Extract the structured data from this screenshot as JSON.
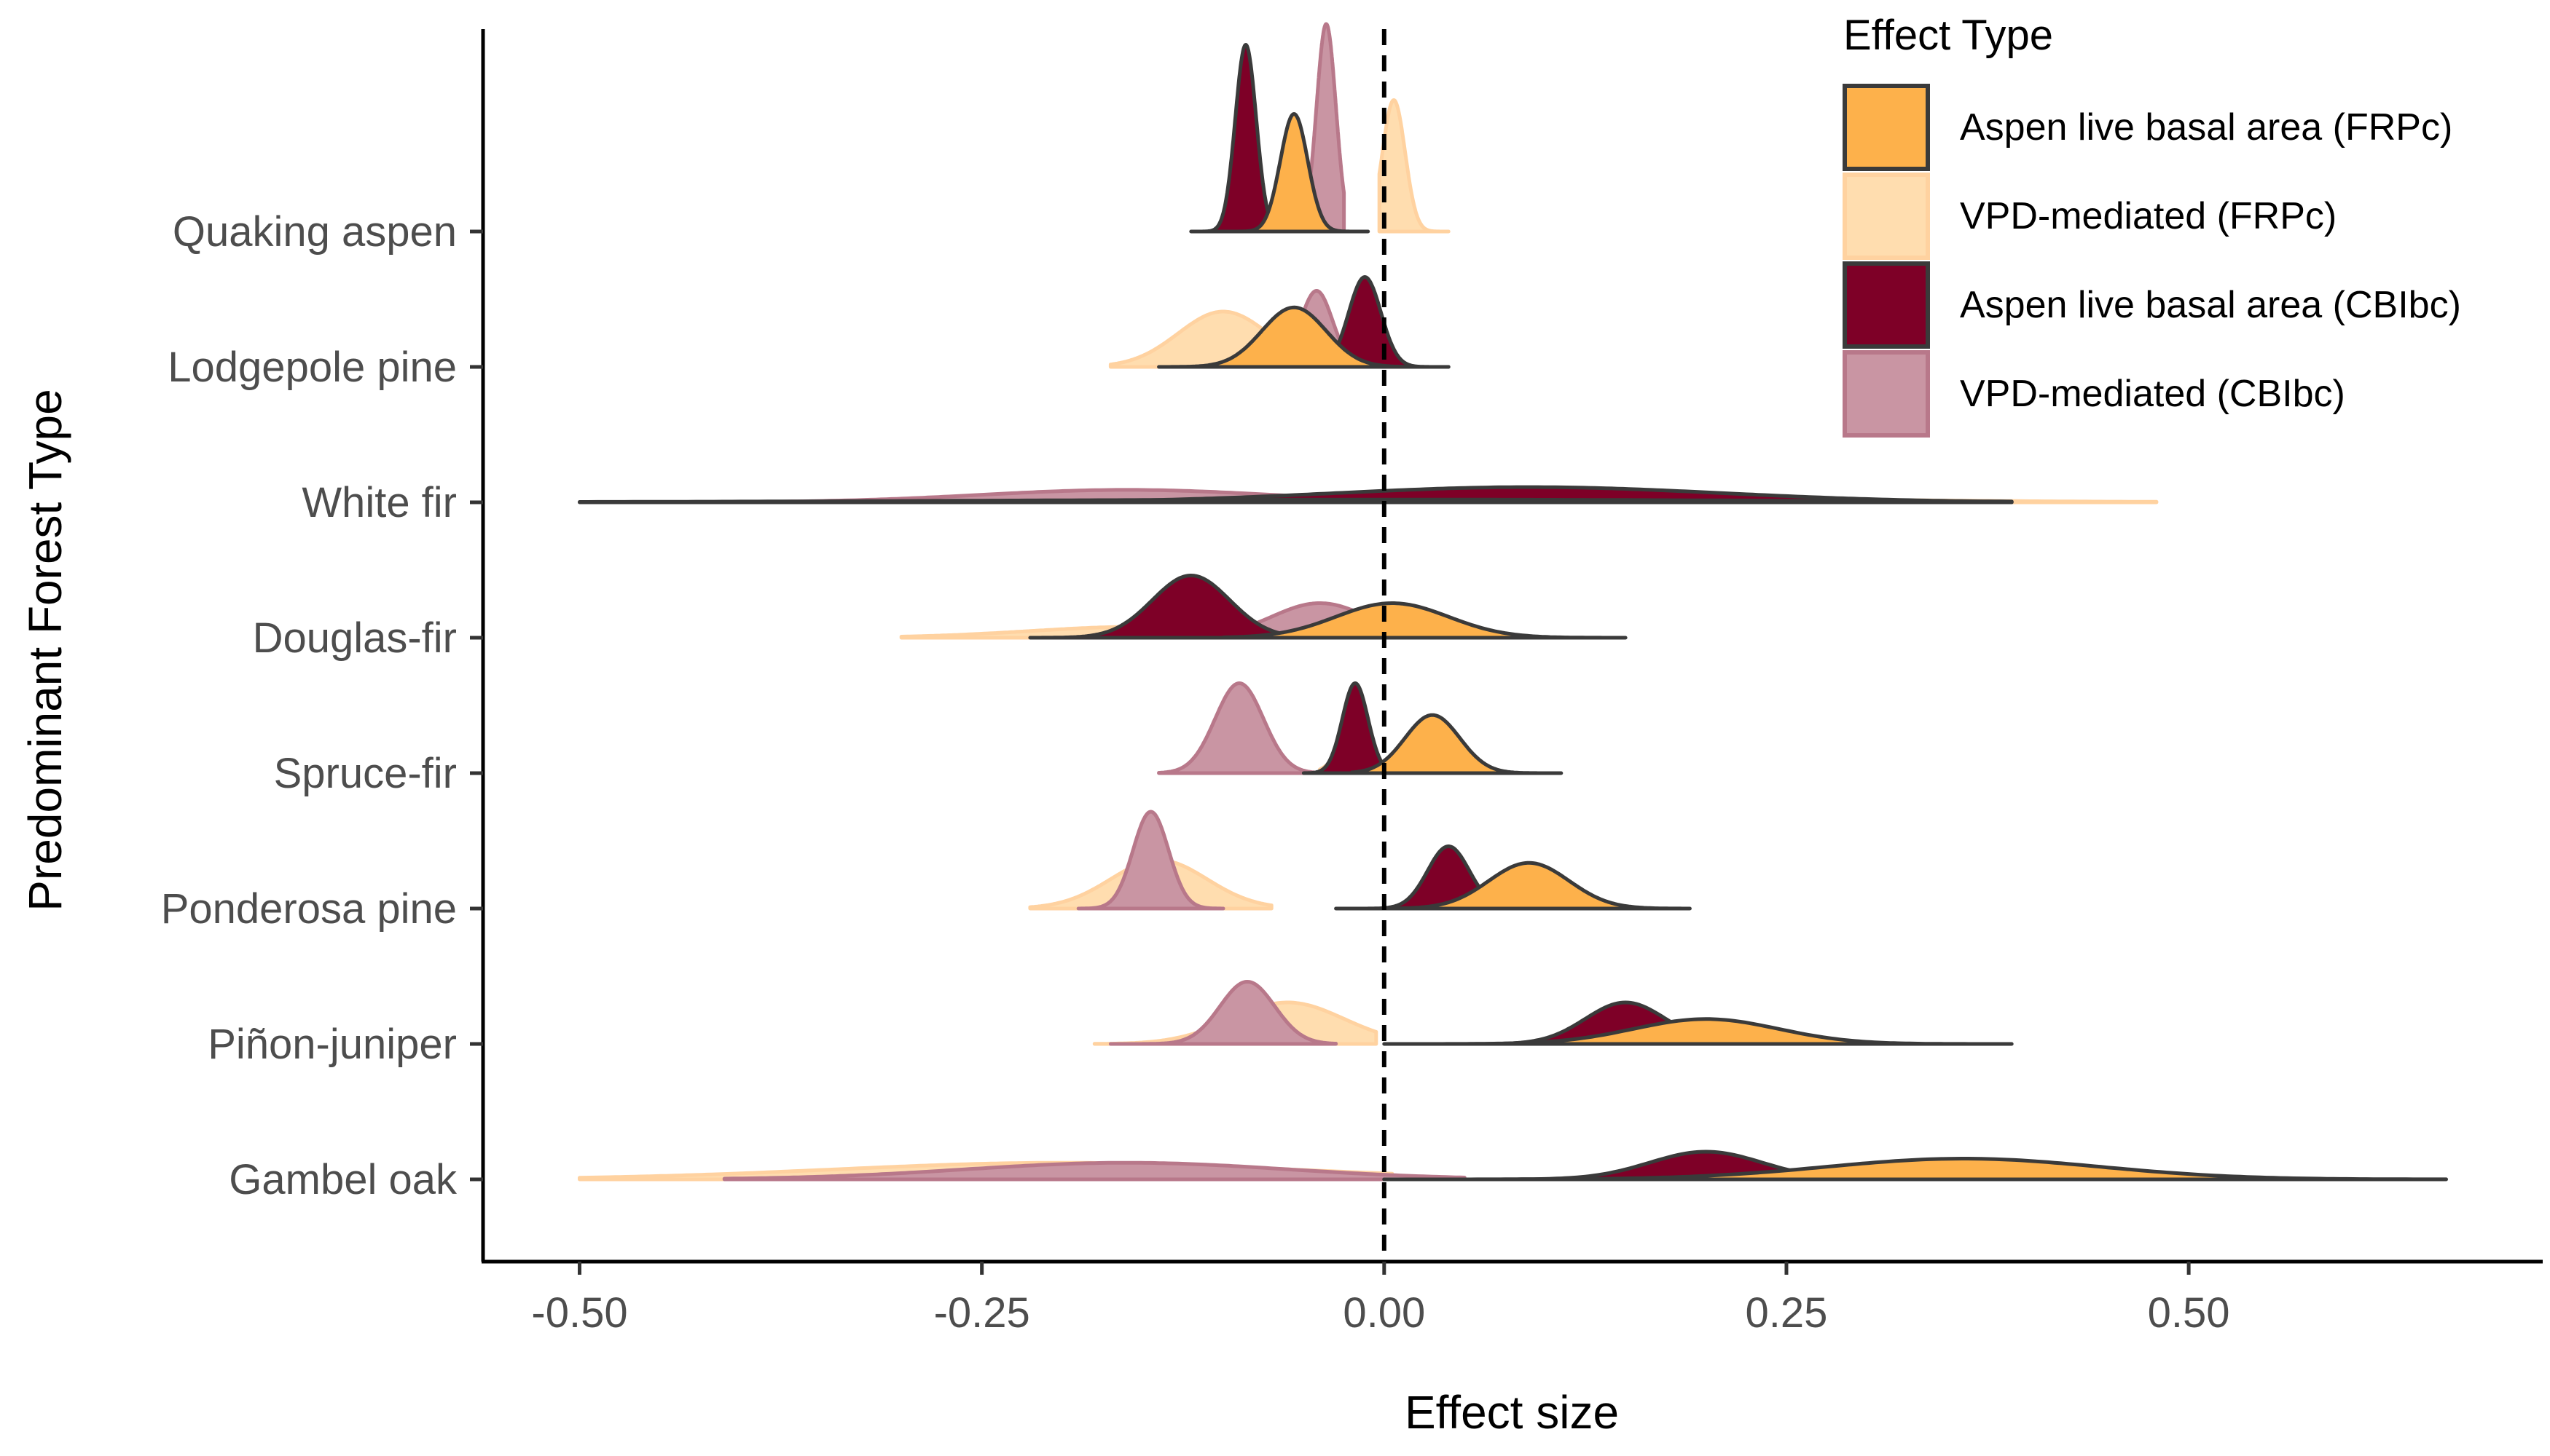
{
  "chart_data": {
    "type": "area",
    "xlabel": "Effect size",
    "ylabel": "Predominant Forest Type",
    "xlim": [
      -0.56,
      0.72
    ],
    "x_ticks": [
      -0.5,
      -0.25,
      0,
      0.25,
      0.5
    ],
    "x_tick_labels": [
      "-0.50",
      "-0.25",
      "0.00",
      "0.25",
      "0.50"
    ],
    "reference_line": {
      "x": 0,
      "style": "dashed"
    },
    "grid": false,
    "categories": [
      "Quaking aspen",
      "Lodgepole pine",
      "White fir",
      "Douglas-fir",
      "Spruce-fir",
      "Ponderosa pine",
      "Piñon-juniper",
      "Gambel oak"
    ],
    "legend": {
      "title": "Effect Type",
      "placement": "top-right",
      "entries": [
        {
          "key": "live_frp",
          "label": "Aspen live basal area (FRPc)",
          "fill": "#FDB14B",
          "stroke": "#3a3a3a"
        },
        {
          "key": "vpd_frp",
          "label": "VPD-mediated (FRPc)",
          "fill": "#FFDDAF",
          "stroke": "#FFD2A0"
        },
        {
          "key": "live_cbi",
          "label": "Aspen live basal area (CBIbc)",
          "fill": "#7E0027",
          "stroke": "#3a3a3a"
        },
        {
          "key": "vpd_cbi",
          "label": "VPD-mediated (CBIbc)",
          "fill": "#C995A3",
          "stroke": "#B8788A"
        }
      ]
    },
    "series": [
      {
        "key": "vpd_frp",
        "name": "VPD-mediated (FRPc)",
        "distributions": [
          {
            "mean": 0.006,
            "sd": 0.007,
            "height": 0.95,
            "lo": -0.003,
            "hi": 0.04
          },
          {
            "mean": -0.1,
            "sd": 0.028,
            "height": 0.4,
            "lo": -0.17,
            "hi": -0.04
          },
          {
            "mean": 0.02,
            "sd": 0.2,
            "height": 0.05,
            "lo": -0.22,
            "hi": 0.48
          },
          {
            "mean": -0.15,
            "sd": 0.07,
            "height": 0.08,
            "lo": -0.3,
            "hi": -0.005
          },
          {
            "mean": -0.02,
            "sd": 0.01,
            "height": 0.2,
            "lo": -0.04,
            "hi": 0.0
          },
          {
            "mean": -0.14,
            "sd": 0.03,
            "height": 0.35,
            "lo": -0.22,
            "hi": -0.07
          },
          {
            "mean": -0.06,
            "sd": 0.035,
            "height": 0.3,
            "lo": -0.18,
            "hi": -0.005
          },
          {
            "mean": -0.2,
            "sd": 0.14,
            "height": 0.12,
            "lo": -0.5,
            "hi": 0.005
          }
        ]
      },
      {
        "key": "vpd_cbi",
        "name": "VPD-mediated (CBIbc)",
        "distributions": [
          {
            "mean": -0.036,
            "sd": 0.006,
            "height": 1.5,
            "lo": -0.05,
            "hi": -0.025
          },
          {
            "mean": -0.042,
            "sd": 0.01,
            "height": 0.55,
            "lo": -0.07,
            "hi": -0.015
          },
          {
            "mean": -0.16,
            "sd": 0.09,
            "height": 0.09,
            "lo": -0.42,
            "hi": 0.1
          },
          {
            "mean": -0.04,
            "sd": 0.03,
            "height": 0.25,
            "lo": -0.12,
            "hi": 0.03
          },
          {
            "mean": -0.09,
            "sd": 0.015,
            "height": 0.65,
            "lo": -0.14,
            "hi": -0.04
          },
          {
            "mean": -0.145,
            "sd": 0.011,
            "height": 0.7,
            "lo": -0.19,
            "hi": -0.1
          },
          {
            "mean": -0.085,
            "sd": 0.017,
            "height": 0.45,
            "lo": -0.17,
            "hi": -0.03
          },
          {
            "mean": -0.16,
            "sd": 0.1,
            "height": 0.12,
            "lo": -0.41,
            "hi": 0.05
          }
        ]
      },
      {
        "key": "live_cbi",
        "name": "Aspen live basal area (CBIbc)",
        "distributions": [
          {
            "mean": -0.086,
            "sd": 0.0065,
            "height": 1.35,
            "lo": -0.12,
            "hi": -0.06
          },
          {
            "mean": -0.012,
            "sd": 0.01,
            "height": 0.65,
            "lo": -0.04,
            "hi": 0.04
          },
          {
            "mean": 0.09,
            "sd": 0.12,
            "height": 0.11,
            "lo": -0.17,
            "hi": 0.39
          },
          {
            "mean": -0.12,
            "sd": 0.024,
            "height": 0.45,
            "lo": -0.22,
            "hi": -0.05
          },
          {
            "mean": -0.018,
            "sd": 0.008,
            "height": 0.65,
            "lo": -0.05,
            "hi": 0.03
          },
          {
            "mean": 0.04,
            "sd": 0.013,
            "height": 0.45,
            "lo": -0.03,
            "hi": 0.1
          },
          {
            "mean": 0.15,
            "sd": 0.025,
            "height": 0.3,
            "lo": 0.02,
            "hi": 0.28
          },
          {
            "mean": 0.2,
            "sd": 0.035,
            "height": 0.2,
            "lo": 0.0,
            "hi": 0.4
          }
        ]
      },
      {
        "key": "live_frp",
        "name": "Aspen live basal area (FRPc)",
        "distributions": [
          {
            "mean": -0.056,
            "sd": 0.0085,
            "height": 0.85,
            "lo": -0.09,
            "hi": -0.01
          },
          {
            "mean": -0.056,
            "sd": 0.02,
            "height": 0.43,
            "lo": -0.14,
            "hi": 0.04
          },
          {
            "mean": 0.0,
            "sd": 0.25,
            "height": 0.02,
            "lo": -0.5,
            "hi": 0.39
          },
          {
            "mean": 0.005,
            "sd": 0.035,
            "height": 0.25,
            "lo": -0.1,
            "hi": 0.15
          },
          {
            "mean": 0.03,
            "sd": 0.017,
            "height": 0.42,
            "lo": -0.02,
            "hi": 0.11
          },
          {
            "mean": 0.09,
            "sd": 0.025,
            "height": 0.33,
            "lo": 0.0,
            "hi": 0.19
          },
          {
            "mean": 0.2,
            "sd": 0.045,
            "height": 0.18,
            "lo": 0.0,
            "hi": 0.39
          },
          {
            "mean": 0.36,
            "sd": 0.085,
            "height": 0.15,
            "lo": 0.0,
            "hi": 0.66
          }
        ]
      }
    ]
  }
}
